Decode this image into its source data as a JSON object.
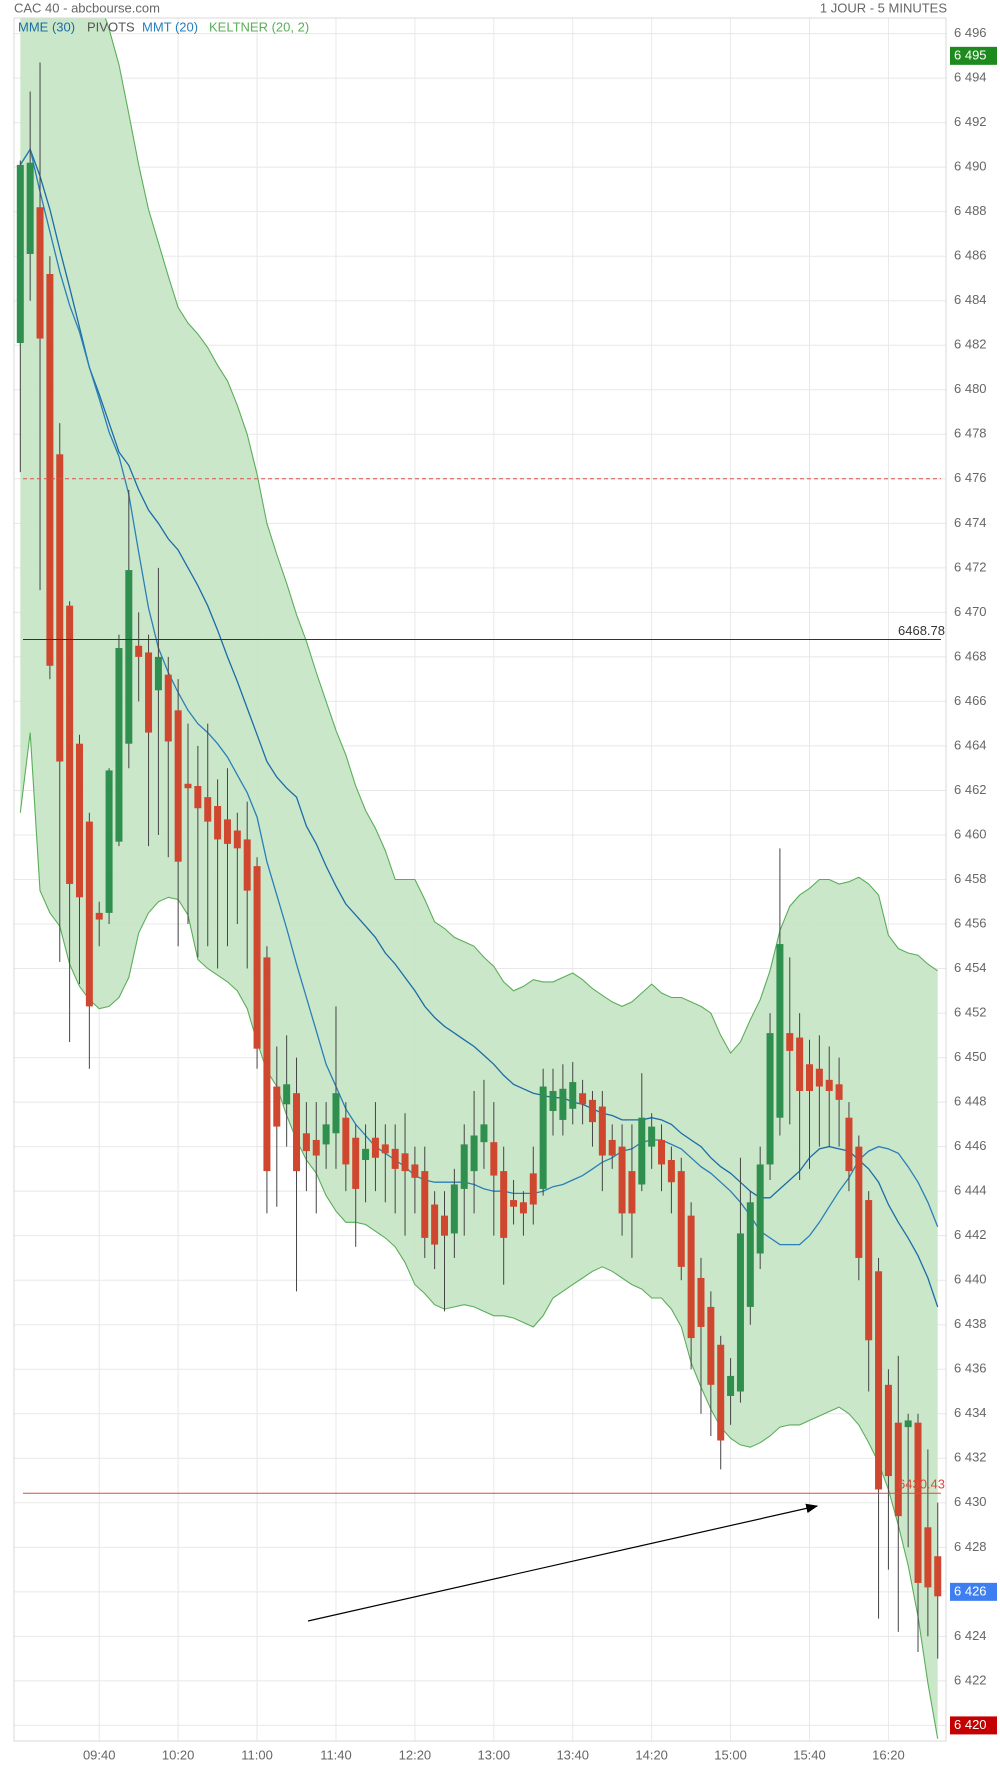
{
  "chart_data": {
    "type": "candlestick",
    "title": "CAC 40 - abcbourse.com",
    "subtitle": "1 JOUR - 5 MINUTES",
    "categories": [
      null,
      null,
      null,
      null,
      null,
      null,
      null,
      null,
      "09:40",
      null,
      null,
      null,
      null,
      null,
      null,
      null,
      "10:20",
      null,
      null,
      null,
      null,
      null,
      null,
      null,
      "11:00",
      null,
      null,
      null,
      null,
      null,
      null,
      null,
      "11:40",
      null,
      null,
      null,
      null,
      null,
      null,
      null,
      "12:20",
      null,
      null,
      null,
      null,
      null,
      null,
      null,
      "13:00",
      null,
      null,
      null,
      null,
      null,
      null,
      null,
      "13:40",
      null,
      null,
      null,
      null,
      null,
      null,
      null,
      "14:20",
      null,
      null,
      null,
      null,
      null,
      null,
      null,
      "15:00",
      null,
      null,
      null,
      null,
      null,
      null,
      null,
      "15:40",
      null,
      null,
      null,
      null,
      null,
      null,
      null,
      "16:20",
      null,
      null,
      null,
      null,
      null
    ],
    "ohlc": {
      "up_color": "#2f8f4e",
      "down_color": "#d0472f",
      "open": [
        6482.1,
        6486.1,
        6488.2,
        6485.2,
        6477.1,
        6470.3,
        6464.1,
        6460.6,
        6456.5,
        6456.5,
        6459.7,
        6464.1,
        6468.5,
        6468.2,
        6466.5,
        6467.2,
        6465.6,
        6462.3,
        6462.2,
        6461.7,
        6461.3,
        6460.7,
        6460.2,
        6459.8,
        6458.6,
        6454.5,
        6448.7,
        6447.9,
        6448.4,
        6446.6,
        6446.3,
        6446.1,
        6446.6,
        6447.3,
        6446.4,
        6445.4,
        6446.4,
        6446.1,
        6445.9,
        6445.7,
        6445.2,
        6444.9,
        6443.4,
        6442.9,
        6442.1,
        6444.1,
        6444.9,
        6446.2,
        6446.2,
        6444.9,
        6443.6,
        6443.5,
        6444.8,
        6444.1,
        6447.6,
        6447.2,
        6447.7,
        6448.4,
        6448.1,
        6447.8,
        6446.3,
        6446,
        6444.9,
        6444.3,
        6446,
        6446.3,
        6445.4,
        6444.9,
        6442.9,
        6440.1,
        6438.8,
        6437.1,
        6434.8,
        6435,
        6438.8,
        6441.2,
        6445.2,
        6447.3,
        6451.1,
        6450.9,
        6449.7,
        6449.5,
        6449,
        6448.8,
        6447.3,
        6446,
        6443.6,
        6440.4,
        6435.3,
        6433.6,
        6433.4,
        6433.6,
        6428.9,
        6427.6
      ],
      "high": [
        6490.3,
        6493.4,
        6494.7,
        6486,
        6478.5,
        6470.5,
        6464.5,
        6461,
        6457,
        6463,
        6469,
        6475.5,
        6470,
        6469,
        6472,
        6468,
        6467,
        6465,
        6464,
        6465,
        6462.5,
        6463,
        6461,
        6461.5,
        6459,
        6455,
        6450.5,
        6451,
        6450,
        6448,
        6448,
        6448,
        6452.3,
        6448,
        6447,
        6447,
        6448,
        6447,
        6447,
        6447.5,
        6446,
        6446,
        6444,
        6444,
        6445,
        6447,
        6448.5,
        6449,
        6448,
        6446,
        6444.5,
        6444,
        6446,
        6449.5,
        6449.5,
        6449.7,
        6449.8,
        6449,
        6448.5,
        6448.5,
        6447,
        6447,
        6447,
        6449.3,
        6447.5,
        6447,
        6446,
        6445.5,
        6443.5,
        6441,
        6439.5,
        6437.5,
        6436.5,
        6445.5,
        6444,
        6446,
        6452,
        6459.4,
        6454.5,
        6452,
        6450.8,
        6451,
        6450.5,
        6450,
        6448,
        6446.5,
        6444,
        6441,
        6436,
        6436.6,
        6434,
        6434,
        6432.4,
        6430
      ],
      "low": [
        6476.3,
        6484,
        6471,
        6467,
        6454.3,
        6450.7,
        6453.3,
        6449.5,
        6455,
        6456,
        6459.5,
        6463,
        6466,
        6459.5,
        6460,
        6459,
        6455,
        6456,
        6454.5,
        6455,
        6454,
        6455,
        6456,
        6454,
        6449.5,
        6443,
        6443.3,
        6446,
        6439.5,
        6444,
        6443,
        6445,
        6445,
        6444,
        6441.5,
        6443.5,
        6444,
        6443.5,
        6443,
        6442,
        6443,
        6441,
        6440.5,
        6438.6,
        6441,
        6442,
        6443,
        6445,
        6442,
        6439.8,
        6442.5,
        6442,
        6442.5,
        6443.8,
        6446.5,
        6446.5,
        6447,
        6447,
        6446,
        6444,
        6445,
        6442,
        6441,
        6444,
        6445,
        6444,
        6443,
        6440,
        6436,
        6434,
        6433,
        6431.5,
        6433.5,
        6434.5,
        6438,
        6440.5,
        6444.5,
        6446.5,
        6447,
        6444.5,
        6445,
        6446,
        6446,
        6446,
        6444,
        6440,
        6435,
        6424.8,
        6427,
        6424.2,
        6428,
        6423.3,
        6424,
        6423
      ],
      "close": [
        6490.1,
        6490.2,
        6482.3,
        6467.6,
        6463.3,
        6457.8,
        6457.2,
        6452.3,
        6456.2,
        6462.9,
        6468.4,
        6471.9,
        6468,
        6464.6,
        6468,
        6464.2,
        6458.8,
        6462.1,
        6461.2,
        6460.6,
        6459.8,
        6459.6,
        6459.4,
        6457.5,
        6450.4,
        6444.9,
        6446.9,
        6448.8,
        6444.9,
        6445.8,
        6445.6,
        6447,
        6448.4,
        6445.2,
        6444.1,
        6445.9,
        6445.5,
        6445.7,
        6445,
        6444.9,
        6444.6,
        6441.9,
        6441.6,
        6442,
        6444.3,
        6446.1,
        6446.5,
        6447,
        6444.7,
        6441.9,
        6443.3,
        6443,
        6443.4,
        6448.7,
        6448.5,
        6448.6,
        6448.9,
        6447.9,
        6447.1,
        6445.6,
        6445.6,
        6443,
        6443,
        6447.3,
        6446.9,
        6445.2,
        6444.4,
        6440.6,
        6437.4,
        6437.9,
        6435.3,
        6432.8,
        6435.7,
        6442.1,
        6443.5,
        6445.2,
        6451.1,
        6455.1,
        6450.3,
        6448.5,
        6448.5,
        6448.7,
        6448.5,
        6448.1,
        6444.9,
        6441,
        6437.3,
        6430.6,
        6431.2,
        6429.4,
        6433.7,
        6426.4,
        6426.2,
        6425.8
      ]
    },
    "series": [
      {
        "name": "MME (30)",
        "color": "#1b6ca8",
        "values": [
          6490.1,
          6490.8,
          6489.6,
          6488.1,
          6486.3,
          6484.6,
          6482.8,
          6481,
          6479.8,
          6478.5,
          6477.2,
          6476.6,
          6475.5,
          6474.6,
          6474,
          6473.3,
          6472.8,
          6472,
          6471.2,
          6470.3,
          6469.2,
          6468,
          6466.9,
          6465.7,
          6464.5,
          6463.3,
          6462.6,
          6462.1,
          6461.7,
          6460.4,
          6459.6,
          6458.6,
          6457.7,
          6456.9,
          6456.4,
          6455.9,
          6455.4,
          6454.7,
          6454.2,
          6453.6,
          6453,
          6452.3,
          6451.8,
          6451.4,
          6451.1,
          6450.8,
          6450.5,
          6450.1,
          6449.7,
          6449.2,
          6448.8,
          6448.6,
          6448.4,
          6448.3,
          6448.2,
          6448.2,
          6448,
          6447.9,
          6447.7,
          6447.5,
          6447.4,
          6447.2,
          6447.2,
          6447.2,
          6447.3,
          6447.2,
          6447,
          6446.6,
          6446.3,
          6446,
          6445.5,
          6445.1,
          6444.8,
          6444.4,
          6444,
          6443.7,
          6443.7,
          6444.1,
          6444.5,
          6444.9,
          6445.5,
          6445.9,
          6446,
          6445.9,
          6445.8,
          6445.4,
          6445,
          6444.4,
          6443.4,
          6442.6,
          6441.9,
          6441.1,
          6440.1,
          6438.8
        ]
      },
      {
        "name": "MMT (20)",
        "color": "#2a7fb8",
        "values": [
          6490.1,
          6490.8,
          6488.9,
          6487.1,
          6485.3,
          6483.8,
          6482.6,
          6481,
          6479.6,
          6478.1,
          6477,
          6475.3,
          6472.7,
          6470.2,
          6468.4,
          6467.3,
          6466.4,
          6465.6,
          6465,
          6464.6,
          6464.1,
          6463.5,
          6462.7,
          6461.9,
          6460.8,
          6458.8,
          6457.3,
          6455.8,
          6454.2,
          6452.7,
          6451.2,
          6449.7,
          6448.7,
          6447.7,
          6447,
          6446.5,
          6446,
          6445.7,
          6445.4,
          6445.1,
          6444.7,
          6444.5,
          6444.4,
          6444.4,
          6444.4,
          6444.4,
          6444.3,
          6444.1,
          6444,
          6444,
          6443.9,
          6443.9,
          6443.9,
          6444,
          6444.2,
          6444.3,
          6444.5,
          6444.7,
          6445,
          6445.3,
          6445.5,
          6445.8,
          6445.9,
          6446.2,
          6446.3,
          6446.3,
          6446.1,
          6445.9,
          6445.5,
          6445.1,
          6444.8,
          6444.4,
          6444,
          6443.5,
          6442.9,
          6442.2,
          6441.9,
          6441.6,
          6441.6,
          6441.6,
          6442,
          6442.6,
          6443.3,
          6444,
          6444.6,
          6445.4,
          6445.8,
          6446,
          6445.9,
          6445.7,
          6445.1,
          6444.4,
          6443.5,
          6442.4
        ]
      }
    ],
    "pivots": {
      "name": "PIVOTS",
      "color": "#555555",
      "levels": [
        {
          "value": 6476,
          "color": "#d9534f",
          "dash": true
        },
        {
          "value": 6468.78,
          "label": "6468.78",
          "color": "#333333"
        },
        {
          "value": 6430.43,
          "label": "6430.43",
          "color": "#e04a3a"
        }
      ]
    },
    "keltner": {
      "name": "KELTNER (20, 2)",
      "color": "#5aae5a",
      "fill": "#c8e6c6",
      "upper": [
        6502,
        6501.5,
        6501,
        6500.5,
        6500,
        6499.5,
        6499,
        6498.5,
        6497.5,
        6496.2,
        6494.6,
        6492.4,
        6490.1,
        6488.1,
        6486.6,
        6485.1,
        6483.7,
        6483,
        6482.5,
        6481.9,
        6481.1,
        6480.4,
        6479.3,
        6478,
        6476.2,
        6474,
        6472.6,
        6471.3,
        6469.9,
        6468.7,
        6467.3,
        6466,
        6464.7,
        6463.6,
        6462.2,
        6461.1,
        6460.3,
        6459.3,
        6458,
        6458,
        6458,
        6457.1,
        6456.1,
        6455.8,
        6455.4,
        6455.2,
        6455,
        6454.5,
        6454.1,
        6453.4,
        6453,
        6453.2,
        6453.5,
        6453.4,
        6453.4,
        6453.6,
        6453.8,
        6453.5,
        6453.1,
        6452.8,
        6452.5,
        6452.3,
        6452.5,
        6452.9,
        6453.3,
        6452.9,
        6452.7,
        6452.7,
        6452.5,
        6452.3,
        6452,
        6451,
        6450.2,
        6450.7,
        6451.7,
        6452.6,
        6453.9,
        6455.7,
        6456.8,
        6457.3,
        6457.6,
        6458,
        6458,
        6457.8,
        6457.9,
        6458.1,
        6457.8,
        6457.3,
        6455.5,
        6454.9,
        6454.7,
        6454.6,
        6454.2,
        6453.9
      ],
      "lower": [
        6461,
        6464.6,
        6457.5,
        6456.5,
        6455.9,
        6454.2,
        6453.2,
        6452.6,
        6452.2,
        6452.3,
        6452.7,
        6453.6,
        6455.6,
        6456.5,
        6457,
        6457.2,
        6457.1,
        6456.4,
        6454.4,
        6454,
        6453.7,
        6453.4,
        6453,
        6452.2,
        6450.7,
        6449.4,
        6448.7,
        6447.4,
        6446.3,
        6445.4,
        6444.8,
        6443.8,
        6443.1,
        6442.6,
        6442.6,
        6442.5,
        6442.2,
        6441.9,
        6441.5,
        6440.8,
        6439.8,
        6439.4,
        6438.9,
        6438.7,
        6438.8,
        6438.9,
        6438.8,
        6438.6,
        6438.4,
        6438.4,
        6438.3,
        6438.1,
        6437.9,
        6438.4,
        6439.2,
        6439.5,
        6439.8,
        6440.1,
        6440.4,
        6440.6,
        6440.4,
        6440.1,
        6439.8,
        6439.6,
        6439.2,
        6439.2,
        6438.7,
        6437.9,
        6436.3,
        6435.2,
        6434.2,
        6433.4,
        6432.9,
        6432.6,
        6432.5,
        6432.7,
        6433,
        6433.4,
        6433.5,
        6433.5,
        6433.7,
        6433.9,
        6434.1,
        6434.3,
        6434,
        6433.5,
        6432.7,
        6431.8,
        6430.6,
        6429,
        6427.2,
        6424.9,
        6421.9,
        6419.4
      ]
    },
    "price_tags": [
      {
        "value": 6495,
        "label": "6 495",
        "color": "#1e8a1e"
      },
      {
        "value": 6426,
        "label": "6 426",
        "color": "#3d7ef0"
      },
      {
        "value": 6420,
        "label": "6 420",
        "color": "#c40000"
      }
    ],
    "ylim": [
      6419.3,
      6496.7
    ],
    "yticks": [
      {
        "value": 6420,
        "label": "6 420"
      },
      {
        "value": 6422,
        "label": "6 422"
      },
      {
        "value": 6424,
        "label": "6 424"
      },
      {
        "value": 6426,
        "label": "6 426"
      },
      {
        "value": 6428,
        "label": "6 428"
      },
      {
        "value": 6430,
        "label": "6 430"
      },
      {
        "value": 6432,
        "label": "6 432"
      },
      {
        "value": 6434,
        "label": "6 434"
      },
      {
        "value": 6436,
        "label": "6 436"
      },
      {
        "value": 6438,
        "label": "6 438"
      },
      {
        "value": 6440,
        "label": "6 440"
      },
      {
        "value": 6442,
        "label": "6 442"
      },
      {
        "value": 6444,
        "label": "6 444"
      },
      {
        "value": 6446,
        "label": "6 446"
      },
      {
        "value": 6448,
        "label": "6 448"
      },
      {
        "value": 6450,
        "label": "6 450"
      },
      {
        "value": 6452,
        "label": "6 452"
      },
      {
        "value": 6454,
        "label": "6 454"
      },
      {
        "value": 6456,
        "label": "6 456"
      },
      {
        "value": 6458,
        "label": "6 458"
      },
      {
        "value": 6460,
        "label": "6 460"
      },
      {
        "value": 6462,
        "label": "6 462"
      },
      {
        "value": 6464,
        "label": "6 464"
      },
      {
        "value": 6466,
        "label": "6 466"
      },
      {
        "value": 6468,
        "label": "6 468"
      },
      {
        "value": 6470,
        "label": "6 470"
      },
      {
        "value": 6472,
        "label": "6 472"
      },
      {
        "value": 6474,
        "label": "6 474"
      },
      {
        "value": 6476,
        "label": "6 476"
      },
      {
        "value": 6478,
        "label": "6 478"
      },
      {
        "value": 6480,
        "label": "6 480"
      },
      {
        "value": 6482,
        "label": "6 482"
      },
      {
        "value": 6484,
        "label": "6 484"
      },
      {
        "value": 6486,
        "label": "6 486"
      },
      {
        "value": 6488,
        "label": "6 488"
      },
      {
        "value": 6490,
        "label": "6 490"
      },
      {
        "value": 6492,
        "label": "6 492"
      },
      {
        "value": 6494,
        "label": "6 494"
      },
      {
        "value": 6496,
        "label": "6 496"
      }
    ],
    "grid": true
  }
}
